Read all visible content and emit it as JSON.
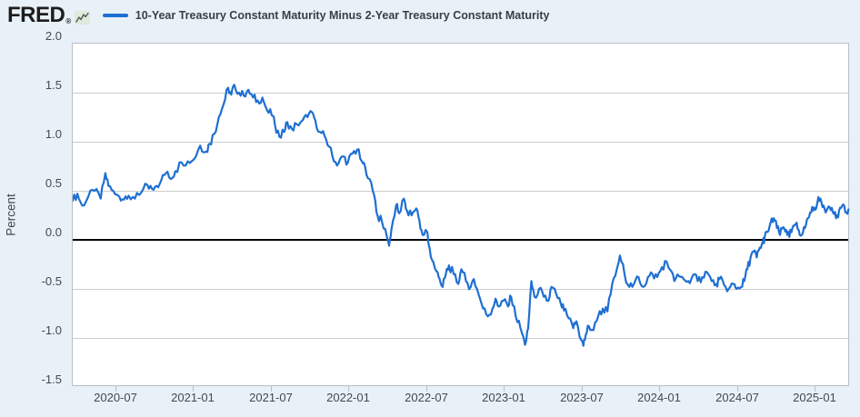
{
  "header": {
    "logo_text": "FRED",
    "registered_mark": "®",
    "legend": {
      "label": "10-Year Treasury Constant Maturity Minus 2-Year Treasury Constant Maturity",
      "swatch_color": "#1f6fd2"
    }
  },
  "colors": {
    "page_background": "#e9f1f8",
    "plot_background": "#ffffff",
    "gridline": "#cccccc",
    "zero_line": "#000000",
    "series_line": "#1f6fd2",
    "axis_text": "#42494f"
  },
  "chart_data": {
    "type": "line",
    "title": "10-Year Treasury Constant Maturity Minus 2-Year Treasury Constant Maturity",
    "ylabel": "Percent",
    "xlabel": "",
    "legend_position": "top",
    "grid": true,
    "ylim": [
      -1.5,
      2.0
    ],
    "xlim_decimal_years": [
      2020.22,
      2025.22
    ],
    "y_tick_labels": [
      "2.0",
      "1.5",
      "1.0",
      "0.5",
      "0.0",
      "-0.5",
      "-1.0",
      "-1.5"
    ],
    "x_tick_labels": [
      "2020-07",
      "2021-01",
      "2021-07",
      "2022-01",
      "2022-07",
      "2023-01",
      "2023-07",
      "2024-01",
      "2024-07",
      "2025-01"
    ],
    "zero_line": true,
    "series": [
      {
        "name": "10-Year Treasury Constant Maturity Minus 2-Year Treasury Constant Maturity",
        "color": "#1f6fd2",
        "units": "Percent",
        "points": [
          [
            2020.22,
            0.4
          ],
          [
            2020.25,
            0.47
          ],
          [
            2020.28,
            0.35
          ],
          [
            2020.32,
            0.44
          ],
          [
            2020.36,
            0.5
          ],
          [
            2020.4,
            0.42
          ],
          [
            2020.43,
            0.68
          ],
          [
            2020.45,
            0.55
          ],
          [
            2020.48,
            0.5
          ],
          [
            2020.52,
            0.44
          ],
          [
            2020.55,
            0.41
          ],
          [
            2020.58,
            0.45
          ],
          [
            2020.62,
            0.42
          ],
          [
            2020.66,
            0.48
          ],
          [
            2020.7,
            0.56
          ],
          [
            2020.73,
            0.52
          ],
          [
            2020.76,
            0.55
          ],
          [
            2020.79,
            0.61
          ],
          [
            2020.82,
            0.68
          ],
          [
            2020.85,
            0.62
          ],
          [
            2020.88,
            0.7
          ],
          [
            2020.92,
            0.79
          ],
          [
            2020.96,
            0.8
          ],
          [
            2021.0,
            0.82
          ],
          [
            2021.04,
            0.96
          ],
          [
            2021.08,
            0.9
          ],
          [
            2021.1,
            0.98
          ],
          [
            2021.13,
            1.08
          ],
          [
            2021.16,
            1.25
          ],
          [
            2021.19,
            1.38
          ],
          [
            2021.22,
            1.55
          ],
          [
            2021.24,
            1.48
          ],
          [
            2021.26,
            1.58
          ],
          [
            2021.29,
            1.5
          ],
          [
            2021.32,
            1.47
          ],
          [
            2021.35,
            1.53
          ],
          [
            2021.38,
            1.45
          ],
          [
            2021.41,
            1.42
          ],
          [
            2021.44,
            1.45
          ],
          [
            2021.47,
            1.32
          ],
          [
            2021.5,
            1.27
          ],
          [
            2021.52,
            1.18
          ],
          [
            2021.55,
            1.05
          ],
          [
            2021.58,
            1.1
          ],
          [
            2021.6,
            1.2
          ],
          [
            2021.63,
            1.13
          ],
          [
            2021.66,
            1.18
          ],
          [
            2021.7,
            1.22
          ],
          [
            2021.73,
            1.25
          ],
          [
            2021.76,
            1.3
          ],
          [
            2021.78,
            1.22
          ],
          [
            2021.81,
            1.1
          ],
          [
            2021.84,
            1.06
          ],
          [
            2021.87,
            0.95
          ],
          [
            2021.9,
            0.8
          ],
          [
            2021.93,
            0.78
          ],
          [
            2021.96,
            0.85
          ],
          [
            2021.99,
            0.79
          ],
          [
            2022.02,
            0.88
          ],
          [
            2022.05,
            0.92
          ],
          [
            2022.08,
            0.8
          ],
          [
            2022.1,
            0.75
          ],
          [
            2022.13,
            0.62
          ],
          [
            2022.16,
            0.45
          ],
          [
            2022.18,
            0.25
          ],
          [
            2022.21,
            0.18
          ],
          [
            2022.24,
            0.04
          ],
          [
            2022.255,
            -0.06
          ],
          [
            2022.27,
            0.1
          ],
          [
            2022.3,
            0.35
          ],
          [
            2022.32,
            0.27
          ],
          [
            2022.35,
            0.42
          ],
          [
            2022.37,
            0.3
          ],
          [
            2022.4,
            0.25
          ],
          [
            2022.43,
            0.32
          ],
          [
            2022.45,
            0.2
          ],
          [
            2022.47,
            0.05
          ],
          [
            2022.5,
            0.08
          ],
          [
            2022.51,
            -0.05
          ],
          [
            2022.53,
            -0.2
          ],
          [
            2022.56,
            -0.32
          ],
          [
            2022.58,
            -0.4
          ],
          [
            2022.6,
            -0.48
          ],
          [
            2022.62,
            -0.35
          ],
          [
            2022.64,
            -0.26
          ],
          [
            2022.67,
            -0.35
          ],
          [
            2022.7,
            -0.45
          ],
          [
            2022.72,
            -0.3
          ],
          [
            2022.75,
            -0.42
          ],
          [
            2022.78,
            -0.48
          ],
          [
            2022.8,
            -0.4
          ],
          [
            2022.83,
            -0.55
          ],
          [
            2022.86,
            -0.7
          ],
          [
            2022.89,
            -0.78
          ],
          [
            2022.92,
            -0.7
          ],
          [
            2022.94,
            -0.6
          ],
          [
            2022.96,
            -0.68
          ],
          [
            2022.99,
            -0.62
          ],
          [
            2023.02,
            -0.68
          ],
          [
            2023.04,
            -0.58
          ],
          [
            2023.07,
            -0.78
          ],
          [
            2023.1,
            -0.9
          ],
          [
            2023.13,
            -1.07
          ],
          [
            2023.15,
            -0.9
          ],
          [
            2023.17,
            -0.42
          ],
          [
            2023.19,
            -0.58
          ],
          [
            2023.22,
            -0.5
          ],
          [
            2023.25,
            -0.58
          ],
          [
            2023.28,
            -0.62
          ],
          [
            2023.3,
            -0.48
          ],
          [
            2023.33,
            -0.55
          ],
          [
            2023.36,
            -0.65
          ],
          [
            2023.38,
            -0.72
          ],
          [
            2023.41,
            -0.8
          ],
          [
            2023.44,
            -0.9
          ],
          [
            2023.46,
            -0.83
          ],
          [
            2023.49,
            -1.02
          ],
          [
            2023.505,
            -1.08
          ],
          [
            2023.52,
            -0.97
          ],
          [
            2023.54,
            -0.88
          ],
          [
            2023.57,
            -0.92
          ],
          [
            2023.6,
            -0.78
          ],
          [
            2023.63,
            -0.7
          ],
          [
            2023.66,
            -0.73
          ],
          [
            2023.69,
            -0.45
          ],
          [
            2023.72,
            -0.3
          ],
          [
            2023.74,
            -0.16
          ],
          [
            2023.77,
            -0.35
          ],
          [
            2023.8,
            -0.48
          ],
          [
            2023.83,
            -0.45
          ],
          [
            2023.86,
            -0.38
          ],
          [
            2023.89,
            -0.48
          ],
          [
            2023.92,
            -0.38
          ],
          [
            2023.95,
            -0.35
          ],
          [
            2023.98,
            -0.38
          ],
          [
            2024.01,
            -0.28
          ],
          [
            2024.04,
            -0.22
          ],
          [
            2024.06,
            -0.3
          ],
          [
            2024.09,
            -0.42
          ],
          [
            2024.12,
            -0.37
          ],
          [
            2024.15,
            -0.4
          ],
          [
            2024.18,
            -0.42
          ],
          [
            2024.21,
            -0.36
          ],
          [
            2024.24,
            -0.42
          ],
          [
            2024.27,
            -0.38
          ],
          [
            2024.3,
            -0.33
          ],
          [
            2024.33,
            -0.42
          ],
          [
            2024.36,
            -0.45
          ],
          [
            2024.38,
            -0.4
          ],
          [
            2024.41,
            -0.46
          ],
          [
            2024.44,
            -0.5
          ],
          [
            2024.47,
            -0.45
          ],
          [
            2024.49,
            -0.5
          ],
          [
            2024.52,
            -0.48
          ],
          [
            2024.54,
            -0.42
          ],
          [
            2024.56,
            -0.3
          ],
          [
            2024.58,
            -0.18
          ],
          [
            2024.6,
            -0.12
          ],
          [
            2024.62,
            -0.18
          ],
          [
            2024.64,
            -0.08
          ],
          [
            2024.66,
            -0.02
          ],
          [
            2024.67,
            0.02
          ],
          [
            2024.69,
            0.08
          ],
          [
            2024.71,
            0.18
          ],
          [
            2024.73,
            0.22
          ],
          [
            2024.75,
            0.12
          ],
          [
            2024.77,
            0.05
          ],
          [
            2024.79,
            0.13
          ],
          [
            2024.81,
            0.1
          ],
          [
            2024.83,
            0.03
          ],
          [
            2024.85,
            0.12
          ],
          [
            2024.87,
            0.16
          ],
          [
            2024.89,
            0.1
          ],
          [
            2024.91,
            0.05
          ],
          [
            2024.93,
            0.12
          ],
          [
            2024.95,
            0.22
          ],
          [
            2024.97,
            0.28
          ],
          [
            2024.99,
            0.33
          ],
          [
            2025.01,
            0.38
          ],
          [
            2025.03,
            0.42
          ],
          [
            2025.05,
            0.35
          ],
          [
            2025.07,
            0.3
          ],
          [
            2025.09,
            0.33
          ],
          [
            2025.11,
            0.28
          ],
          [
            2025.13,
            0.22
          ],
          [
            2025.15,
            0.3
          ],
          [
            2025.17,
            0.35
          ],
          [
            2025.19,
            0.28
          ],
          [
            2025.21,
            0.31
          ]
        ]
      }
    ]
  }
}
